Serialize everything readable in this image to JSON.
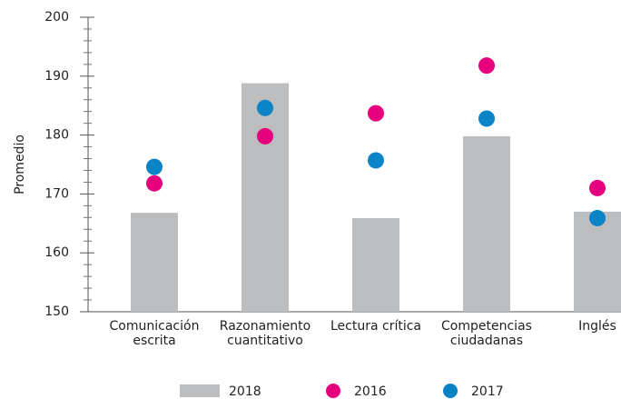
{
  "chart_data": {
    "type": "bar_dot",
    "y_label": "Promedio",
    "categories": [
      "Comunicación escrita",
      "Razonamiento cuantitativo",
      "Lectura crítica",
      "Competencias ciudadanas",
      "Inglés"
    ],
    "series": [
      {
        "name": "2018",
        "kind": "bar",
        "color": "#bcbdbf",
        "values": [
          166.8,
          188.8,
          165.9,
          179.8,
          167
        ]
      },
      {
        "name": "2016",
        "kind": "dot",
        "color": "#e6007e",
        "values": [
          171.8,
          179.8,
          183.7,
          191.8,
          171
        ]
      },
      {
        "name": "2017",
        "kind": "dot",
        "color": "#0a84c6",
        "values": [
          174.6,
          184.6,
          175.7,
          182.8,
          165.9
        ]
      }
    ],
    "ylim": [
      150,
      200
    ],
    "yticks": [
      150,
      160,
      170,
      180,
      190,
      200
    ],
    "yticks_minor": [
      152,
      154,
      156,
      158,
      162,
      164,
      166,
      168,
      172,
      174,
      176,
      178,
      182,
      184,
      186,
      188,
      192,
      194,
      196,
      198
    ]
  }
}
